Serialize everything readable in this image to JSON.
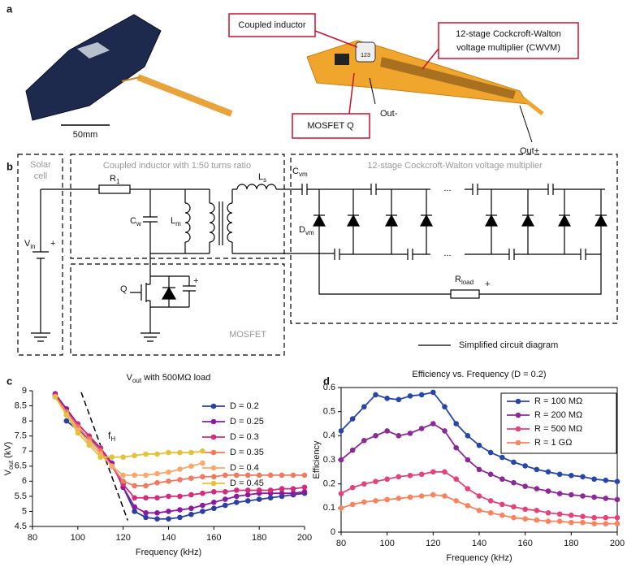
{
  "panel_labels": [
    "a",
    "b",
    "c",
    "d"
  ],
  "photo": {
    "scale_bar": "50mm",
    "chip_marking": "123",
    "callouts": {
      "coupled_inductor": "Coupled inductor",
      "cwvm": [
        "12-stage Cockcroft-Walton",
        "voltage multiplier (CWVM)"
      ],
      "mosfet": "MOSFET Q",
      "out_minus": "Out-",
      "out_plus": "Out+"
    }
  },
  "circuit": {
    "boxes": {
      "solar": [
        "Solar",
        "cell"
      ],
      "inductor": "Coupled inductor with 1:50 turns ratio",
      "cwvm": "12-stage Cockcroft-Walton voltage multiplier",
      "mosfet": "MOSFET"
    },
    "labels": {
      "r1": {
        "main": "R",
        "sub": "1"
      },
      "cw": {
        "main": "C",
        "sub": "w"
      },
      "lm": {
        "main": "L",
        "sub": "m"
      },
      "ls": {
        "main": "L",
        "sub": "s"
      },
      "vin": {
        "main": "V",
        "sub": "in"
      },
      "q": "Q",
      "cvm": {
        "main": "C",
        "sub": "vm"
      },
      "dvm": {
        "main": "D",
        "sub": "vm"
      },
      "rload": {
        "main": "R",
        "sub": "load"
      }
    },
    "plus_signs": [
      "+",
      "+",
      "+"
    ],
    "ellipses": [
      "...",
      "..."
    ],
    "legend": "Simplified circuit diagram"
  },
  "chart_data": [
    {
      "type": "line",
      "title": {
        "main": "V",
        "sub": "out",
        "rest": " with 500MΩ load"
      },
      "xlabel": "Frequency (kHz)",
      "ylabel": {
        "main": "V",
        "sub": "out",
        "rest": " (kV)"
      },
      "xlim": [
        80,
        200
      ],
      "ylim": [
        4.5,
        9
      ],
      "xticks": [
        80,
        100,
        120,
        140,
        160,
        180,
        200
      ],
      "yticks": [
        4.5,
        5,
        5.5,
        6,
        6.5,
        7,
        7.5,
        8,
        8.5,
        9
      ],
      "guide": {
        "x": [
          101.5,
          122
        ],
        "y": [
          8.95,
          4.7
        ]
      },
      "annotation": {
        "main": "f",
        "sub": "H"
      },
      "series": [
        {
          "name": "D = 0.2",
          "color": "#2b3f9e",
          "x": [
            95,
            100,
            105,
            110,
            115,
            120,
            125,
            130,
            135,
            140,
            145,
            150,
            155,
            160,
            165,
            170,
            175,
            180,
            185,
            190,
            195,
            200
          ],
          "values": [
            8.0,
            7.7,
            7.4,
            7.1,
            6.6,
            5.8,
            5.0,
            4.8,
            4.75,
            4.75,
            4.8,
            4.9,
            5.0,
            5.1,
            5.2,
            5.3,
            5.35,
            5.4,
            5.45,
            5.5,
            5.55,
            5.6
          ]
        },
        {
          "name": "D = 0.25",
          "color": "#8b1a9e",
          "x": [
            90,
            95,
            100,
            105,
            110,
            115,
            120,
            125,
            130,
            135,
            140,
            145,
            150,
            155,
            160,
            165,
            170,
            175,
            180,
            185,
            190,
            195,
            200
          ],
          "values": [
            8.9,
            8.4,
            7.9,
            7.5,
            7.1,
            6.6,
            5.8,
            5.15,
            4.95,
            4.95,
            5.0,
            5.05,
            5.1,
            5.2,
            5.3,
            5.4,
            5.5,
            5.55,
            5.6,
            5.6,
            5.6,
            5.6,
            5.65
          ]
        },
        {
          "name": "D = 0.3",
          "color": "#d02e7b",
          "x": [
            90,
            95,
            100,
            105,
            110,
            115,
            120,
            125,
            130,
            135,
            140,
            145,
            150,
            155,
            160,
            165,
            170,
            175,
            180,
            185,
            190,
            195,
            200
          ],
          "values": [
            8.85,
            8.3,
            7.9,
            7.5,
            7.1,
            6.5,
            5.9,
            5.45,
            5.45,
            5.45,
            5.5,
            5.5,
            5.55,
            5.6,
            5.65,
            5.65,
            5.7,
            5.7,
            5.7,
            5.7,
            5.75,
            5.75,
            5.8
          ]
        },
        {
          "name": "D = 0.35",
          "color": "#f07a5f",
          "x": [
            90,
            95,
            100,
            105,
            110,
            115,
            120,
            125,
            130,
            135,
            140,
            145,
            150,
            155,
            160,
            165,
            170,
            175,
            180,
            185,
            190,
            195,
            200
          ],
          "values": [
            8.8,
            8.3,
            7.8,
            7.4,
            7.0,
            6.5,
            6.0,
            5.85,
            5.85,
            5.95,
            6.0,
            6.05,
            6.1,
            6.15,
            6.15,
            6.2,
            6.2,
            6.2,
            6.2,
            6.2,
            6.2,
            6.2,
            6.2
          ]
        },
        {
          "name": "D = 0.4",
          "color": "#f9a86b",
          "x": [
            90,
            95,
            100,
            105,
            110,
            115,
            120,
            125,
            130,
            135,
            140,
            145,
            150,
            155
          ],
          "values": [
            8.8,
            8.2,
            7.7,
            7.3,
            6.9,
            6.5,
            6.2,
            6.2,
            6.2,
            6.25,
            6.3,
            6.4,
            6.5,
            6.6
          ]
        },
        {
          "name": "D = 0.45",
          "color": "#e2c23a",
          "x": [
            90,
            95,
            100,
            105,
            110,
            115,
            120,
            125,
            130,
            135,
            140,
            145,
            150,
            155
          ],
          "values": [
            8.8,
            8.2,
            7.6,
            7.2,
            6.8,
            6.8,
            6.8,
            6.85,
            6.9,
            6.9,
            6.95,
            6.95,
            6.95,
            7.0
          ]
        }
      ]
    },
    {
      "type": "line",
      "title": "Efficiency vs. Frequency (D = 0.2)",
      "xlabel": "Frequency (kHz)",
      "ylabel": "Efficiency",
      "xlim": [
        80,
        200
      ],
      "ylim": [
        0,
        0.6
      ],
      "xticks": [
        80,
        100,
        120,
        140,
        160,
        180,
        200
      ],
      "yticks": [
        0,
        0.1,
        0.2,
        0.3,
        0.4,
        0.5,
        0.6
      ],
      "x": [
        80,
        85,
        90,
        95,
        100,
        105,
        110,
        115,
        120,
        125,
        130,
        135,
        140,
        145,
        150,
        155,
        160,
        165,
        170,
        175,
        180,
        185,
        190,
        195,
        200
      ],
      "series": [
        {
          "name": "R = 100 MΩ",
          "color": "#2746a8",
          "values": [
            0.42,
            0.47,
            0.52,
            0.57,
            0.555,
            0.55,
            0.565,
            0.57,
            0.58,
            0.52,
            0.45,
            0.4,
            0.36,
            0.33,
            0.31,
            0.29,
            0.275,
            0.26,
            0.25,
            0.24,
            0.235,
            0.23,
            0.22,
            0.215,
            0.21
          ]
        },
        {
          "name": "R = 200 MΩ",
          "color": "#8a2a94",
          "values": [
            0.3,
            0.34,
            0.38,
            0.4,
            0.42,
            0.4,
            0.41,
            0.43,
            0.45,
            0.42,
            0.35,
            0.3,
            0.26,
            0.24,
            0.22,
            0.205,
            0.19,
            0.18,
            0.17,
            0.16,
            0.155,
            0.15,
            0.145,
            0.14,
            0.135
          ]
        },
        {
          "name": "R = 500 MΩ",
          "color": "#e0447b",
          "values": [
            0.16,
            0.185,
            0.2,
            0.21,
            0.22,
            0.23,
            0.235,
            0.24,
            0.25,
            0.25,
            0.22,
            0.18,
            0.15,
            0.13,
            0.115,
            0.105,
            0.095,
            0.09,
            0.08,
            0.075,
            0.07,
            0.065,
            0.06,
            0.06,
            0.06
          ]
        },
        {
          "name": "R = 1 GΩ",
          "color": "#f7845e",
          "values": [
            0.1,
            0.115,
            0.125,
            0.13,
            0.135,
            0.14,
            0.145,
            0.15,
            0.155,
            0.15,
            0.13,
            0.11,
            0.09,
            0.08,
            0.07,
            0.06,
            0.055,
            0.05,
            0.045,
            0.045,
            0.04,
            0.04,
            0.035,
            0.035,
            0.035
          ]
        }
      ]
    }
  ]
}
